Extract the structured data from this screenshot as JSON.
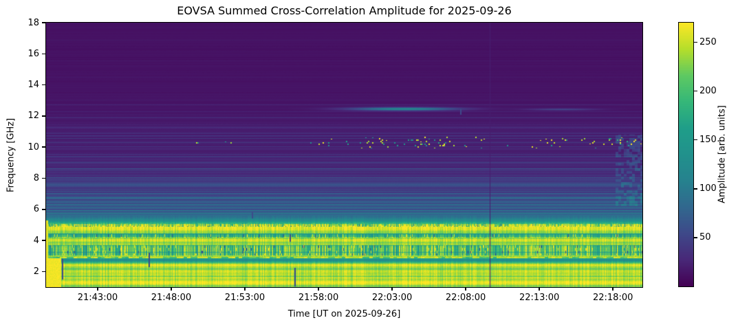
{
  "chart_data": {
    "type": "heatmap",
    "title": "EOVSA Summed Cross-Correlation Amplitude for 2025-09-26",
    "xlabel": "Time [UT on 2025-09-26]",
    "ylabel": "Frequency [GHz]",
    "x_axis": {
      "start": "21:39:30",
      "end": "22:20:00",
      "tick_labels": [
        "21:43:00",
        "21:48:00",
        "21:53:00",
        "21:58:00",
        "22:03:00",
        "22:08:00",
        "22:13:00",
        "22:18:00"
      ]
    },
    "y_axis": {
      "min": 1.0,
      "max": 18.0,
      "ticks": [
        2,
        4,
        6,
        8,
        10,
        12,
        14,
        16,
        18
      ],
      "unit": "GHz"
    },
    "colorbar": {
      "label": "Amplitude [arb. units]",
      "vmin": 0,
      "vmax": 270,
      "ticks": [
        50,
        100,
        150,
        200,
        250
      ]
    },
    "colormap": {
      "name": "viridis",
      "stops": [
        [
          0.0,
          "#440154"
        ],
        [
          0.1,
          "#482878"
        ],
        [
          0.2,
          "#3e4989"
        ],
        [
          0.3,
          "#31688e"
        ],
        [
          0.4,
          "#26828e"
        ],
        [
          0.5,
          "#21918c"
        ],
        [
          0.6,
          "#1f9e89"
        ],
        [
          0.7,
          "#35b779"
        ],
        [
          0.8,
          "#5ec962"
        ],
        [
          0.9,
          "#b5de2b"
        ],
        [
          1.0,
          "#fde725"
        ]
      ]
    },
    "freq_amplitude_profile": [
      [
        1.0,
        263
      ],
      [
        1.25,
        260
      ],
      [
        1.4,
        255
      ],
      [
        1.5,
        240
      ],
      [
        1.6,
        252
      ],
      [
        1.75,
        244
      ],
      [
        1.85,
        250
      ],
      [
        1.95,
        258
      ],
      [
        2.05,
        248
      ],
      [
        2.15,
        228
      ],
      [
        2.25,
        240
      ],
      [
        2.35,
        255
      ],
      [
        2.45,
        250
      ],
      [
        2.55,
        215
      ],
      [
        2.62,
        170
      ],
      [
        2.7,
        150
      ],
      [
        2.8,
        155
      ],
      [
        2.88,
        200
      ],
      [
        2.92,
        250
      ],
      [
        3.0,
        225
      ],
      [
        3.1,
        210
      ],
      [
        3.2,
        205
      ],
      [
        3.3,
        215
      ],
      [
        3.4,
        205
      ],
      [
        3.5,
        198
      ],
      [
        3.6,
        205
      ],
      [
        3.7,
        220
      ],
      [
        3.8,
        238
      ],
      [
        3.9,
        248
      ],
      [
        4.0,
        252
      ],
      [
        4.12,
        240
      ],
      [
        4.22,
        205
      ],
      [
        4.3,
        185
      ],
      [
        4.42,
        195
      ],
      [
        4.5,
        228
      ],
      [
        4.6,
        240
      ],
      [
        4.75,
        252
      ],
      [
        4.88,
        250
      ],
      [
        4.95,
        235
      ],
      [
        5.02,
        215
      ],
      [
        5.1,
        185
      ],
      [
        5.25,
        140
      ],
      [
        5.4,
        110
      ],
      [
        5.55,
        85
      ],
      [
        5.7,
        70
      ],
      [
        5.85,
        60
      ],
      [
        6.0,
        62
      ],
      [
        6.2,
        58
      ],
      [
        6.6,
        52
      ],
      [
        7.0,
        46
      ],
      [
        7.4,
        41
      ],
      [
        7.8,
        37
      ],
      [
        8.2,
        33
      ],
      [
        8.6,
        30
      ],
      [
        9.0,
        27
      ],
      [
        9.5,
        24
      ],
      [
        10.0,
        22
      ],
      [
        10.5,
        20
      ],
      [
        11.0,
        18
      ],
      [
        11.5,
        17
      ],
      [
        12.0,
        16
      ],
      [
        12.3,
        15
      ],
      [
        12.8,
        14
      ],
      [
        13.5,
        13
      ],
      [
        15.0,
        12
      ],
      [
        18.0,
        11
      ]
    ],
    "spectral_lines": [
      {
        "f": 12.3,
        "boost": 9
      },
      {
        "f": 11.3,
        "boost": 7
      },
      {
        "f": 10.7,
        "boost": 9
      },
      {
        "f": 9.4,
        "boost": 12
      },
      {
        "f": 8.6,
        "boost": 18
      },
      {
        "f": 8.05,
        "boost": 32
      },
      {
        "f": 7.5,
        "boost": 22
      },
      {
        "f": 7.0,
        "boost": 40
      },
      {
        "f": 6.55,
        "boost": 36
      },
      {
        "f": 6.3,
        "boost": 28
      },
      {
        "f": 5.9,
        "boost": 24
      }
    ],
    "row_noise": [
      {
        "f0": 13.0,
        "f1": 18.1,
        "mag": 0.18,
        "lineProb": 0.05,
        "lineBoost": 5
      },
      {
        "f0": 10.8,
        "f1": 13.0,
        "mag": 0.2,
        "lineProb": 0.1,
        "lineBoost": 10
      },
      {
        "f0": 8.0,
        "f1": 10.8,
        "mag": 0.22,
        "lineProb": 0.16,
        "lineBoost": 16
      },
      {
        "f0": 5.6,
        "f1": 8.0,
        "mag": 0.22,
        "lineProb": 0.25,
        "lineBoost": 28
      },
      {
        "f0": 0.9,
        "f1": 5.6,
        "mag": 0.05,
        "lineProb": 0.2,
        "lineBoost": -35
      }
    ],
    "col_noise": {
      "f_max": 5.6,
      "mag": 0.07
    },
    "rfi_bands": [
      {
        "f0": 3.05,
        "f1": 3.7,
        "colMag": 0.3,
        "darkProb": 0.012,
        "brightProb": 0.05
      },
      {
        "f0": 4.18,
        "f1": 4.42,
        "colMag": 0.22,
        "darkProb": 0.02,
        "brightProb": 0.03
      },
      {
        "f0": 4.9,
        "f1": 5.07,
        "colMag": 0.38,
        "darkProb": 0.03,
        "brightProb": 0.12
      }
    ],
    "dotted_rows": [
      {
        "f": 2.9,
        "period": 5
      },
      {
        "f": 5.0,
        "period": 4
      }
    ],
    "speckle_band": {
      "f0": 9.9,
      "f1": 10.65,
      "center": 10.25,
      "sigma": 0.3,
      "segments": [
        [
          0.22,
          0.42,
          0.004
        ],
        [
          0.42,
          0.52,
          0.015
        ],
        [
          0.52,
          0.68,
          0.06
        ],
        [
          0.68,
          0.8,
          0.03
        ],
        [
          0.8,
          0.92,
          0.022
        ],
        [
          0.92,
          1.0,
          0.04
        ]
      ]
    },
    "streaks": [
      {
        "f": 12.45,
        "fSigma": 0.1,
        "t": 0.6,
        "tSigma": 0.085,
        "amp": 110
      },
      {
        "f": 12.42,
        "fSigma": 0.06,
        "t": 0.865,
        "tSigma": 0.055,
        "amp": 40
      }
    ],
    "vline": {
      "t": 0.744
    },
    "dark_marks": [
      [
        0.027,
        1.5,
        2.8
      ],
      [
        0.173,
        2.3,
        3.2
      ],
      [
        0.346,
        5.4,
        5.8
      ],
      [
        0.409,
        3.9,
        4.4
      ],
      [
        0.417,
        1.05,
        2.25
      ],
      [
        0.695,
        12.1,
        12.45
      ]
    ],
    "left_edge": {
      "width_frac": 0.004,
      "f_max": 5.3,
      "amp": 260
    },
    "corner_blob": {
      "t1": 0.025,
      "f_max": 2.85,
      "amp": 266
    },
    "right_smudge": {
      "t0": 0.955,
      "f0": 6.2,
      "f1": 10.8,
      "boost": 22
    }
  }
}
